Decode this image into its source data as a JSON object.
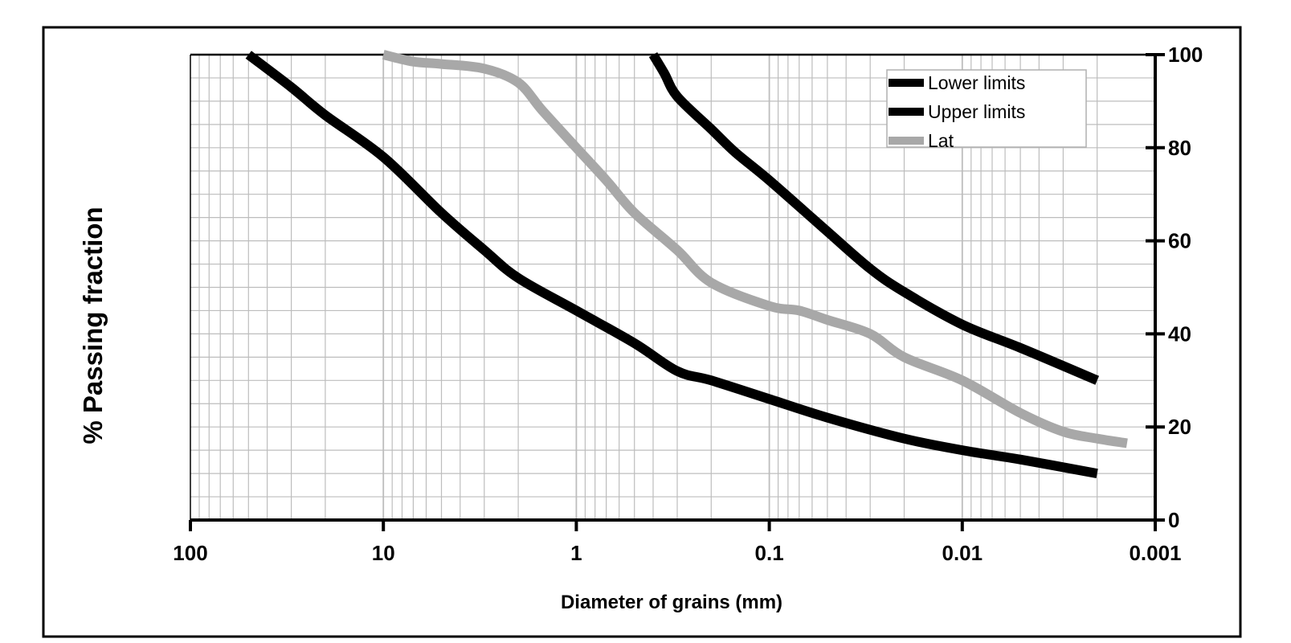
{
  "chart_data": {
    "type": "line",
    "title": "",
    "xlabel": "Diameter of grains (mm)",
    "ylabel": "% Passing fraction",
    "x_scale": "log",
    "x_reversed": true,
    "xlim": [
      100,
      0.001
    ],
    "ylim": [
      0,
      100
    ],
    "y_axis_position": "right",
    "x_ticks": [
      {
        "value": 100,
        "label": "100"
      },
      {
        "value": 10,
        "label": "10"
      },
      {
        "value": 1,
        "label": "1"
      },
      {
        "value": 0.1,
        "label": "0.1"
      },
      {
        "value": 0.01,
        "label": "0.01"
      },
      {
        "value": 0.001,
        "label": "0.001"
      }
    ],
    "y_ticks": [
      {
        "value": 0,
        "label": "0"
      },
      {
        "value": 20,
        "label": "20"
      },
      {
        "value": 40,
        "label": "40"
      },
      {
        "value": 60,
        "label": "60"
      },
      {
        "value": 80,
        "label": "80"
      },
      {
        "value": 100,
        "label": "100"
      }
    ],
    "grid": true,
    "legend_position": "top-right",
    "series": [
      {
        "name": "Lower limits",
        "color": "#000000",
        "x": [
          50,
          30,
          20,
          10,
          5,
          3,
          2,
          1,
          0.5,
          0.3,
          0.2,
          0.1,
          0.05,
          0.02,
          0.01,
          0.005,
          0.002
        ],
        "y": [
          100,
          93,
          87,
          78,
          66,
          58,
          52,
          45,
          38,
          32,
          30,
          26,
          22,
          17.5,
          15,
          13,
          10
        ]
      },
      {
        "name": "Upper limits",
        "color": "#000000",
        "x": [
          0.4,
          0.35,
          0.3,
          0.2,
          0.15,
          0.1,
          0.05,
          0.03,
          0.02,
          0.01,
          0.005,
          0.002
        ],
        "y": [
          100,
          96,
          91,
          84,
          79,
          73,
          62,
          54,
          49,
          42,
          37,
          30
        ]
      },
      {
        "name": "Lat",
        "color": "#a8a8a8",
        "x": [
          10,
          7,
          5,
          3,
          2,
          1.5,
          1,
          0.7,
          0.5,
          0.3,
          0.2,
          0.1,
          0.07,
          0.05,
          0.03,
          0.02,
          0.01,
          0.005,
          0.003,
          0.002,
          0.0014
        ],
        "y": [
          100,
          98.5,
          98,
          97,
          94,
          88,
          80,
          73,
          66,
          58,
          51,
          46,
          45,
          43,
          40,
          35,
          30,
          23,
          19,
          17.5,
          16.5
        ]
      }
    ]
  }
}
